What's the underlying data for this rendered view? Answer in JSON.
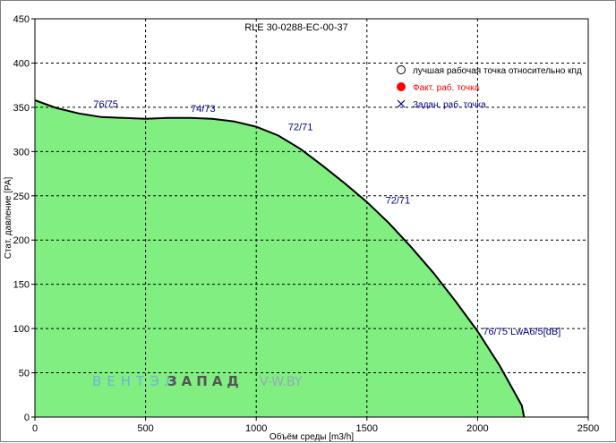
{
  "chart_data": {
    "type": "area",
    "title": "RLE 30-0288-EC-00-37",
    "xlabel": "Объём среды [m3/h]",
    "ylabel": "Стат. давление [PA]",
    "xlim": [
      0,
      2500
    ],
    "ylim": [
      0,
      450
    ],
    "xticks": [
      "0",
      "500",
      "1000",
      "1500",
      "2000",
      "2500"
    ],
    "yticks": [
      "0",
      "50",
      "100",
      "150",
      "200",
      "250",
      "300",
      "350",
      "400",
      "450"
    ],
    "grid": true,
    "fill_color": "#80ee80",
    "line_color": "#000000",
    "series": [
      {
        "x": [
          0,
          100,
          200,
          300,
          400,
          500,
          600,
          700,
          800,
          900,
          1000,
          1100,
          1200,
          1300,
          1400,
          1500,
          1600,
          1700,
          1800,
          1900,
          2000,
          2100,
          2200,
          2210
        ],
        "values": [
          358,
          349,
          343,
          339,
          338,
          337,
          338,
          338,
          337,
          334,
          328,
          318,
          303,
          284,
          264,
          243,
          219,
          192,
          163,
          131,
          97,
          58,
          13,
          0
        ]
      }
    ],
    "annotations": [
      {
        "text": "76/75",
        "x": 320,
        "y": 350
      },
      {
        "text": "74/73",
        "x": 760,
        "y": 345
      },
      {
        "text": "72/71",
        "x": 1200,
        "y": 324
      },
      {
        "text": "72/71",
        "x": 1640,
        "y": 241
      },
      {
        "text": "76/75 LwA6/5[dB]",
        "x": 2200,
        "y": 93
      }
    ],
    "legend": {
      "position": "top-right",
      "entries": [
        {
          "label": "лучшая рабочая точка относительно кпд",
          "marker": "circle-open",
          "color": "#000000"
        },
        {
          "label": "Факт. раб. точка",
          "marker": "circle-filled",
          "color": "#ff0000"
        },
        {
          "label": "Задан. раб. точка",
          "marker": "x",
          "color": "#00008b"
        }
      ]
    }
  },
  "watermark": {
    "part1": "ВЕНТЭЛ",
    "part2": "ЗАПАД",
    "part3": "V-W.BY"
  }
}
